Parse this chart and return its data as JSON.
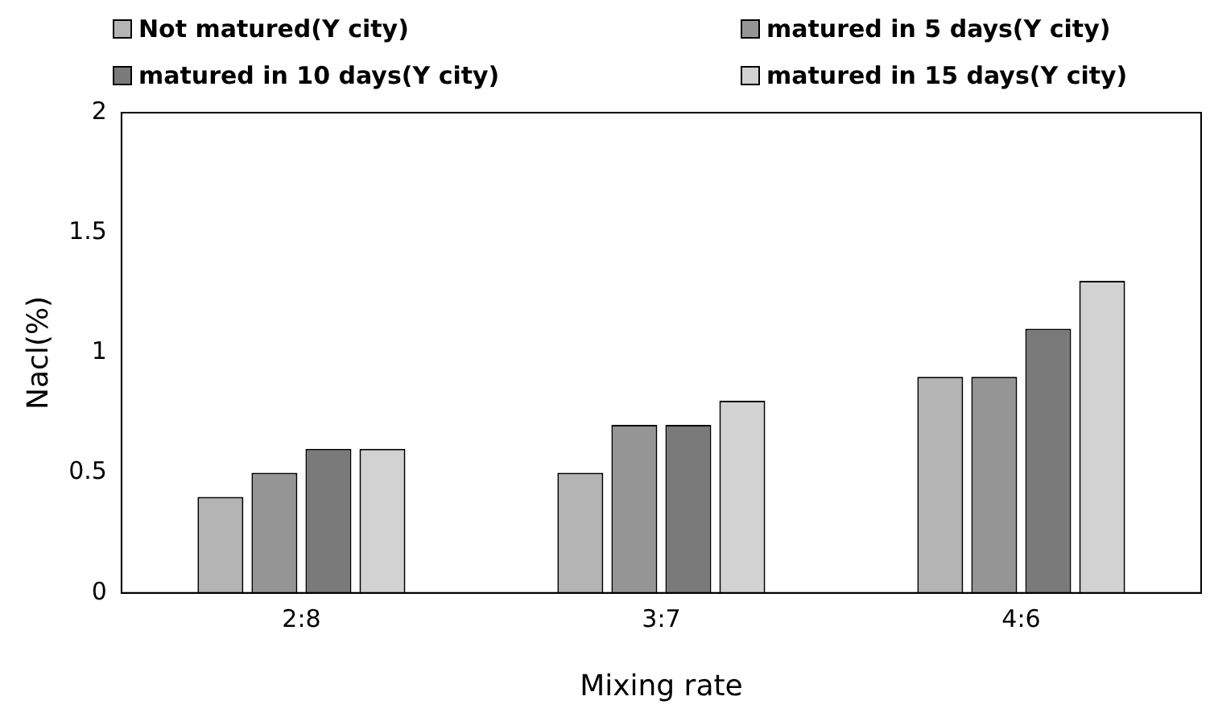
{
  "chart_data": {
    "type": "bar",
    "xlabel": "Mixing rate",
    "ylabel": "Nacl(%)",
    "categories": [
      "2:8",
      "3:7",
      "4:6"
    ],
    "series": [
      {
        "name": "Not matured(Y city)",
        "color": "#b4b4b4",
        "values": [
          0.4,
          0.5,
          0.9
        ]
      },
      {
        "name": "matured in 5 days(Y city)",
        "color": "#959595",
        "values": [
          0.5,
          0.7,
          0.9
        ]
      },
      {
        "name": "matured in 10 days(Y city)",
        "color": "#7a7a7a",
        "values": [
          0.6,
          0.7,
          1.1
        ]
      },
      {
        "name": "matured in 15 days(Y city)",
        "color": "#d2d2d2",
        "values": [
          0.6,
          0.8,
          1.3
        ]
      }
    ],
    "ylim": [
      0,
      2
    ],
    "yticks": [
      0,
      0.5,
      1,
      1.5,
      2
    ],
    "grid": false,
    "legend": "top"
  }
}
